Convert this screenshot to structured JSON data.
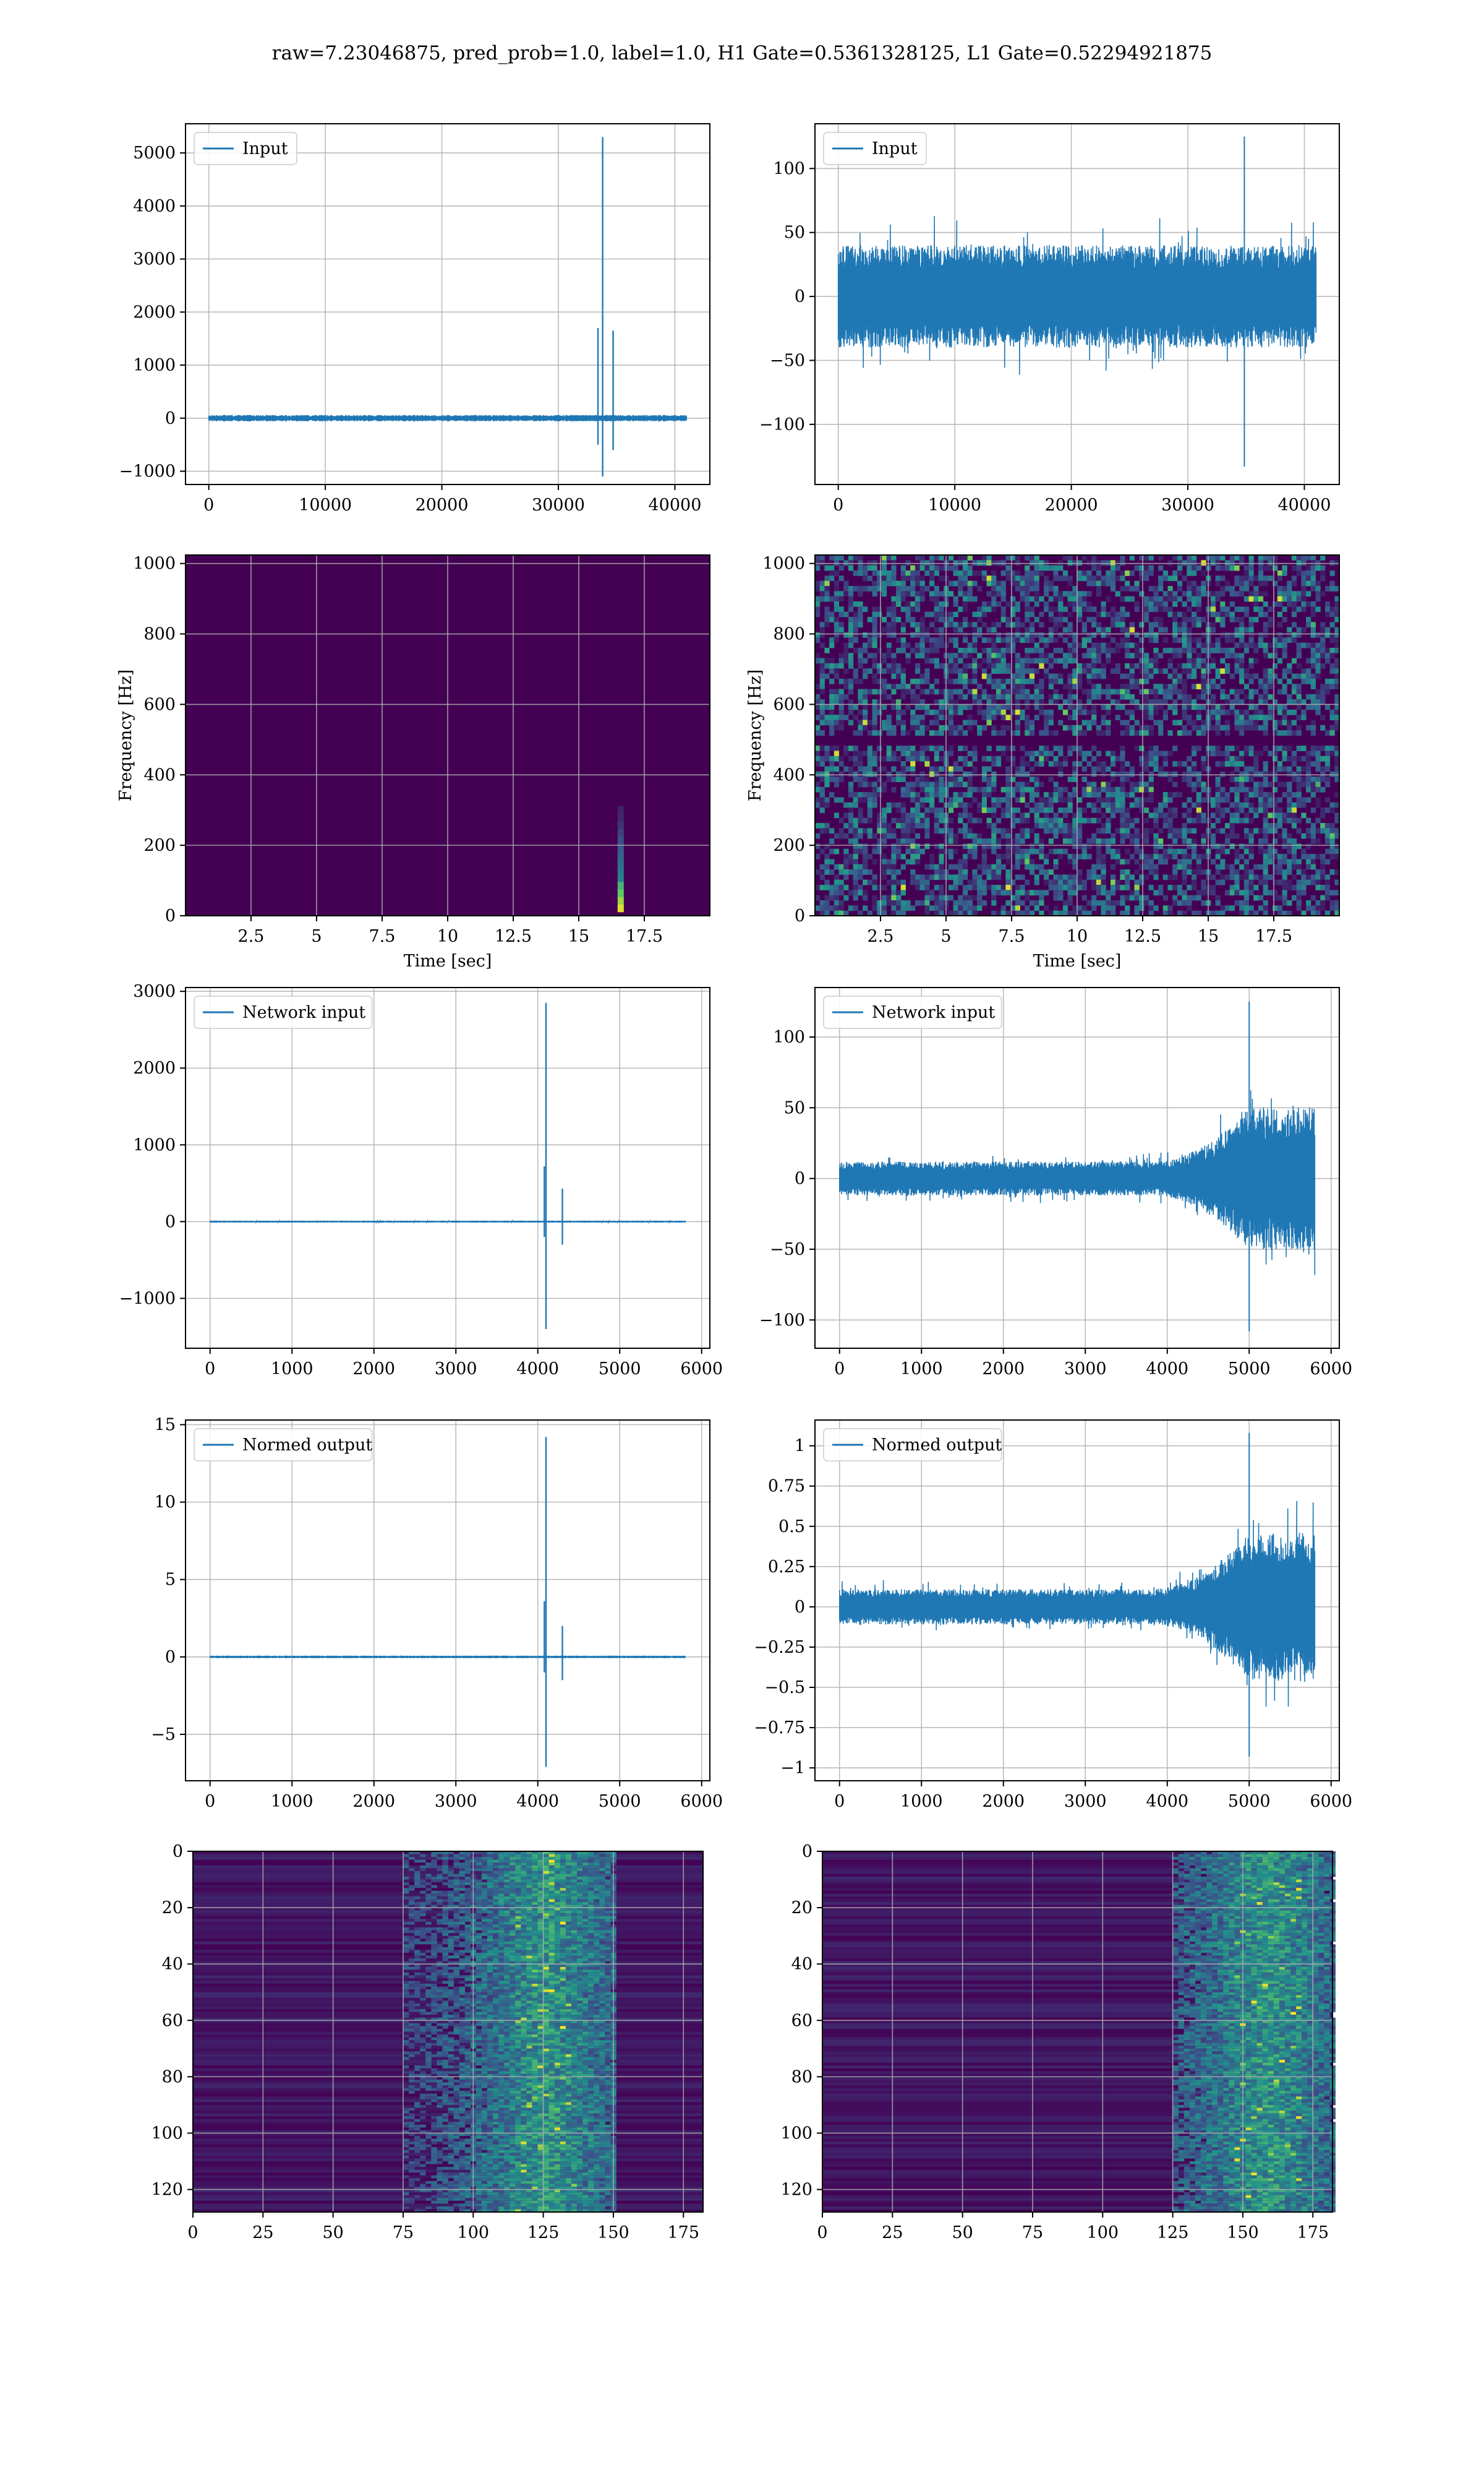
{
  "figure_title": "raw=7.23046875, pred_prob=1.0, label=1.0, H1 Gate=0.5361328125, L1 Gate=0.52294921875",
  "colors": {
    "line": "#1f77b4",
    "grid": "#b0b0b0",
    "viridis_low": "#440154",
    "viridis_high": "#fde725"
  },
  "chart_data": [
    {
      "type": "line",
      "panel": "row1-left",
      "series": [
        {
          "name": "Input"
        }
      ],
      "legend": "top-left",
      "grid": true,
      "xlim": [
        -2000,
        43000
      ],
      "ylim": [
        -1250,
        5550
      ],
      "xticks": [
        0,
        10000,
        20000,
        30000,
        40000
      ],
      "yticks": [
        -1000,
        0,
        1000,
        2000,
        3000,
        4000,
        5000
      ],
      "signal": {
        "n": 41000,
        "noise_amp": 60,
        "events": [
          {
            "x": 33800,
            "peak": 5300,
            "trough": -1100
          },
          {
            "x": 33400,
            "peak": 1700,
            "trough": -500
          },
          {
            "x": 34700,
            "peak": 1650,
            "trough": -600
          }
        ]
      }
    },
    {
      "type": "line",
      "panel": "row1-right",
      "series": [
        {
          "name": "Input"
        }
      ],
      "legend": "top-left",
      "grid": true,
      "xlim": [
        -2000,
        43000
      ],
      "ylim": [
        -147,
        135
      ],
      "xticks": [
        0,
        10000,
        20000,
        30000,
        40000
      ],
      "yticks": [
        -100,
        -50,
        0,
        50,
        100
      ],
      "signal": {
        "n": 41000,
        "band": 40,
        "extremes": [
          125,
          -133
        ]
      }
    },
    {
      "type": "heatmap",
      "panel": "row2-left",
      "grid": true,
      "xlim": [
        0,
        20
      ],
      "ylim": [
        0,
        1024
      ],
      "xticks": [
        2.5,
        5.0,
        7.5,
        10.0,
        12.5,
        15.0,
        17.5
      ],
      "yticks": [
        0,
        200,
        400,
        600,
        800,
        1000
      ],
      "xlabel": "Time [sec]",
      "ylabel": "Frequency [Hz]",
      "features": [
        {
          "t": 16.6,
          "f_min": 20,
          "f_max": 300
        }
      ]
    },
    {
      "type": "heatmap",
      "panel": "row2-right",
      "grid": true,
      "xlim": [
        0,
        20
      ],
      "ylim": [
        0,
        1024
      ],
      "xticks": [
        2.5,
        5.0,
        7.5,
        10.0,
        12.5,
        15.0,
        17.5
      ],
      "yticks": [
        0,
        200,
        400,
        600,
        800,
        1000
      ],
      "xlabel": "Time [sec]",
      "ylabel": "Frequency [Hz]",
      "features": [
        {
          "f": 500,
          "kind": "line"
        }
      ]
    },
    {
      "type": "line",
      "panel": "row3-left",
      "series": [
        {
          "name": "Network input"
        }
      ],
      "legend": "top-left",
      "grid": true,
      "xlim": [
        -300,
        6100
      ],
      "ylim": [
        -1650,
        3050
      ],
      "xticks": [
        0,
        1000,
        2000,
        3000,
        4000,
        5000,
        6000
      ],
      "yticks": [
        -1000,
        0,
        1000,
        2000,
        3000
      ],
      "signal": {
        "n": 5800,
        "noise_amp": 12,
        "events": [
          {
            "x": 4100,
            "peak": 2850,
            "trough": -1400
          },
          {
            "x": 4080,
            "peak": 720,
            "trough": -200
          },
          {
            "x": 4300,
            "peak": 430,
            "trough": -300
          }
        ]
      }
    },
    {
      "type": "line",
      "panel": "row3-right",
      "series": [
        {
          "name": "Network input"
        }
      ],
      "legend": "top-left",
      "grid": true,
      "xlim": [
        -300,
        6100
      ],
      "ylim": [
        -120,
        135
      ],
      "xticks": [
        0,
        1000,
        2000,
        3000,
        4000,
        5000,
        6000
      ],
      "yticks": [
        -100,
        -50,
        0,
        50,
        100
      ],
      "signal": {
        "n": 5800,
        "band": 12,
        "ramp_start": 3800,
        "ramp_peak": 5000,
        "extremes": [
          125,
          -108
        ]
      }
    },
    {
      "type": "line",
      "panel": "row4-left",
      "series": [
        {
          "name": "Normed output"
        }
      ],
      "legend": "top-left",
      "grid": true,
      "xlim": [
        -300,
        6100
      ],
      "ylim": [
        -8,
        15.3
      ],
      "xticks": [
        0,
        1000,
        2000,
        3000,
        4000,
        5000,
        6000
      ],
      "yticks": [
        -5,
        0,
        5,
        10,
        15
      ],
      "signal": {
        "n": 5800,
        "noise_amp": 0.08,
        "events": [
          {
            "x": 4100,
            "peak": 14.2,
            "trough": -7.1
          },
          {
            "x": 4080,
            "peak": 3.6,
            "trough": -1.0
          },
          {
            "x": 4300,
            "peak": 2.0,
            "trough": -1.5
          }
        ]
      }
    },
    {
      "type": "line",
      "panel": "row4-right",
      "series": [
        {
          "name": "Normed output"
        }
      ],
      "legend": "top-left",
      "grid": true,
      "xlim": [
        -300,
        6100
      ],
      "ylim": [
        -1.08,
        1.16
      ],
      "xticks": [
        0,
        1000,
        2000,
        3000,
        4000,
        5000,
        6000
      ],
      "yticks": [
        -1.0,
        -0.75,
        -0.5,
        -0.25,
        0.0,
        0.25,
        0.5,
        0.75,
        1.0
      ],
      "signal": {
        "n": 5800,
        "band": 0.11,
        "ramp_start": 3800,
        "ramp_peak": 5000,
        "extremes": [
          1.08,
          -0.93
        ]
      }
    },
    {
      "type": "heatmap",
      "panel": "row5-left",
      "grid": true,
      "xlim": [
        0,
        182
      ],
      "ylim": [
        128,
        0
      ],
      "xticks": [
        0,
        25,
        50,
        75,
        100,
        125,
        150,
        175
      ],
      "yticks": [
        0,
        20,
        40,
        60,
        80,
        100,
        120
      ],
      "features": [
        {
          "activity_x": [
            75,
            150
          ],
          "hot_x": 125
        }
      ]
    },
    {
      "type": "heatmap",
      "panel": "row5-right",
      "grid": true,
      "xlim": [
        0,
        182
      ],
      "ylim": [
        128,
        0
      ],
      "xticks": [
        0,
        25,
        50,
        75,
        100,
        125,
        150,
        175
      ],
      "yticks": [
        0,
        20,
        40,
        60,
        80,
        100,
        120
      ],
      "features": [
        {
          "activity_x": [
            125,
            182
          ],
          "hot_x": 158
        }
      ]
    }
  ]
}
